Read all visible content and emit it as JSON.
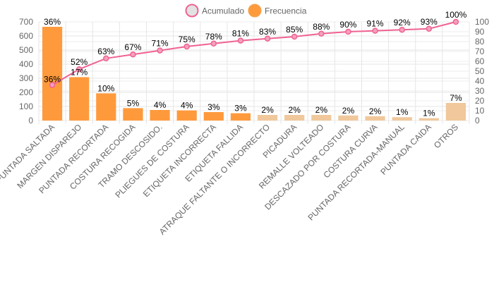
{
  "chart_data": {
    "type": "bar",
    "legend": {
      "position": "top",
      "items": [
        {
          "label": "Acumulado",
          "color": "#e2e2e2",
          "border": "#f06292"
        },
        {
          "label": "Frecuencia",
          "color": "#ff9a3c",
          "border": "#f5a04a"
        }
      ]
    },
    "categories": [
      "PUNTADA SALTADA",
      "MARGEN DISPAREJO",
      "PUNTADA RECORTADA",
      "COSTURA RECOGIDA",
      "TRAMO DESCOSIDO.",
      "PLIEGUES DE COSTURA",
      "ETIQUETA INCORRECTA",
      "ETIQUETA FALLIDA",
      "ATRAQUE FALTANTE O INCORRECTO",
      "PICADURA",
      "REMALLE VOLTEADO",
      "DESCAZADO POR COSTURA",
      "COSTURA CURVA",
      "PUNTADA RECORTADA-MANUAL",
      "PUNTADA CAIDA",
      "OTROS"
    ],
    "series": [
      {
        "name": "Frecuencia",
        "type": "bar",
        "axis": "left",
        "values": [
          665,
          308,
          193,
          88,
          75,
          72,
          60,
          52,
          40,
          40,
          40,
          36,
          31,
          24,
          17,
          125
        ],
        "labels": [
          "36%",
          "17%",
          "10%",
          "5%",
          "4%",
          "4%",
          "3%",
          "3%",
          "2%",
          "2%",
          "2%",
          "2%",
          "2%",
          "1%",
          "1%",
          "7%"
        ],
        "colors": [
          "#ff9a3c",
          "#ff9a3c",
          "#ff9a3c",
          "#ff9a3c",
          "#ff9a3c",
          "#ff9a3c",
          "#ff9a3c",
          "#ff9a3c",
          "#f0c89c",
          "#f0c89c",
          "#f0c89c",
          "#f0c89c",
          "#f0c89c",
          "#f0c89c",
          "#f0c89c",
          "#f0c89c"
        ]
      },
      {
        "name": "Acumulado",
        "type": "line",
        "axis": "right",
        "color": "#f06292",
        "values": [
          36,
          52,
          63,
          67,
          71,
          75,
          78,
          81,
          83,
          85,
          88,
          90,
          91,
          92,
          93,
          100
        ],
        "labels": [
          "36%",
          "52%",
          "63%",
          "67%",
          "71%",
          "75%",
          "78%",
          "81%",
          "83%",
          "85%",
          "88%",
          "90%",
          "91%",
          "92%",
          "93%",
          "100%"
        ]
      }
    ],
    "y_left": {
      "min": 0,
      "max": 700,
      "ticks": [
        "0",
        "100",
        "200",
        "300",
        "400",
        "500",
        "600",
        "700"
      ]
    },
    "y_right": {
      "min": 0,
      "max": 100,
      "ticks": [
        "0",
        "10",
        "20",
        "30",
        "40",
        "50",
        "60",
        "70",
        "80",
        "90",
        "100"
      ]
    },
    "grid": true
  }
}
